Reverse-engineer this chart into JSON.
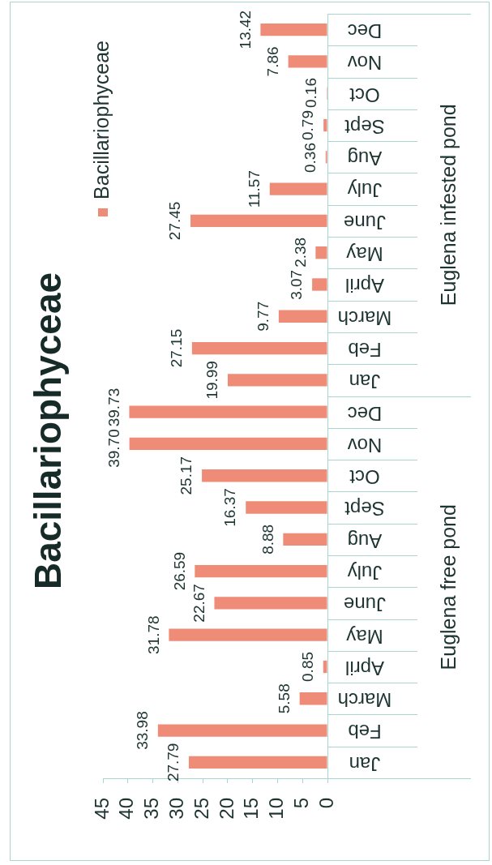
{
  "chart_data": {
    "type": "bar",
    "orientation": "horizontal",
    "title": "Bacillariophyceae",
    "categories": [
      "Dec",
      "Nov",
      "Oct",
      "Sept",
      "Aug",
      "July",
      "June",
      "May",
      "April",
      "March",
      "Feb",
      "Jan",
      "Dec",
      "Nov",
      "Oct",
      "Sept",
      "Aug",
      "July",
      "June",
      "May",
      "April",
      "March",
      "Feb",
      "Jan"
    ],
    "series": [
      {
        "name": "Bacillariophyceae",
        "color": "#ef8c78",
        "values": [
          13.42,
          7.86,
          0.16,
          0.79,
          0.36,
          11.57,
          27.45,
          2.38,
          3.07,
          9.77,
          27.15,
          19.99,
          39.73,
          39.7,
          25.17,
          16.37,
          8.88,
          26.59,
          22.67,
          31.78,
          0.85,
          5.58,
          33.98,
          27.79
        ],
        "value_labels": [
          "13.42",
          "7.86",
          "0.16",
          "0.79",
          "0.36",
          "11.57",
          "27.45",
          "2.38",
          "3.07",
          "9.77",
          "27.15",
          "19.99",
          "39.73",
          "39.70",
          "25.17",
          "16.37",
          "8.88",
          "26.59",
          "22.67",
          "31.78",
          "0.85",
          "5.58",
          "33.98",
          "27.79"
        ]
      }
    ],
    "xlim": [
      45,
      0
    ],
    "xticks": [
      0,
      5,
      10,
      15,
      20,
      25,
      30,
      35,
      40,
      45
    ],
    "legend": "top left",
    "annotations": [
      "Euglena infested pond",
      "Euglena free pond"
    ]
  }
}
